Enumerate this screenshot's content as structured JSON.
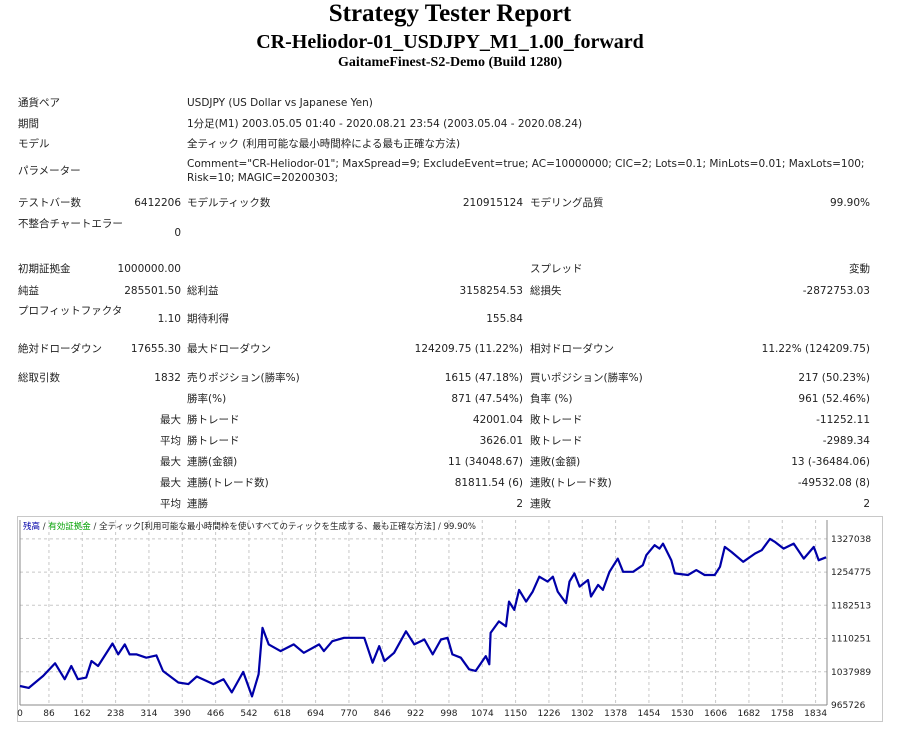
{
  "header": {
    "title": "Strategy Tester Report",
    "subtitle": "CR-Heliodor-01_USDJPY_M1_1.00_forward",
    "server": "GaitameFinest-S2-Demo (Build 1280)"
  },
  "info": {
    "symbol_label": "通貨ペア",
    "symbol": "USDJPY (US Dollar vs Japanese Yen)",
    "period_label": "期間",
    "period": "1分足(M1) 2003.05.05 01:40 - 2020.08.21 23:54 (2003.05.04 - 2020.08.24)",
    "model_label": "モデル",
    "model": "全ティック (利用可能な最小時間枠による最も正確な方法)",
    "params_label": "パラメーター",
    "params": "Comment=\"CR-Heliodor-01\"; MaxSpread=9; ExcludeEvent=true; AC=10000000; CIC=2; Lots=0.1; MinLots=0.01; MaxLots=100; Risk=10; MAGIC=20200303;",
    "bars_label": "テストバー数",
    "bars": "6412206",
    "ticks_label": "モデルティック数",
    "ticks": "210915124",
    "quality_label": "モデリング品質",
    "quality": "99.90%",
    "errors_label": "不整合チャートエラー",
    "errors": "0"
  },
  "stats": {
    "deposit_label": "初期証拠金",
    "deposit": "1000000.00",
    "spread_label": "スプレッド",
    "spread": "変動",
    "net_label": "純益",
    "net": "285501.50",
    "gross_profit_label": "総利益",
    "gross_profit": "3158254.53",
    "gross_loss_label": "総損失",
    "gross_loss": "-2872753.03",
    "pf_label": "プロフィットファクタ",
    "pf": "1.10",
    "payoff_label": "期待利得",
    "payoff": "155.84",
    "abs_dd_label": "絶対ドローダウン",
    "abs_dd": "17655.30",
    "max_dd_label": "最大ドローダウン",
    "max_dd": "124209.75 (11.22%)",
    "rel_dd_label": "相対ドローダウン",
    "rel_dd": "11.22% (124209.75)",
    "trades_label": "総取引数",
    "trades": "1832",
    "short_label": "売りポジション(勝率%)",
    "short": "1615 (47.18%)",
    "long_label": "買いポジション(勝率%)",
    "long": "217 (50.23%)",
    "win_label": "勝率(%)",
    "win": "871 (47.54%)",
    "loss_label": "負率 (%)",
    "loss": "961 (52.46%)",
    "max": "最大",
    "avg": "平均",
    "lg_win_label": "勝トレード",
    "lg_win": "42001.04",
    "lg_loss_label": "敗トレード",
    "lg_loss": "-11252.11",
    "av_win_label": "勝トレード",
    "av_win": "3626.01",
    "av_loss_label": "敗トレード",
    "av_loss": "-2989.34",
    "mcw_label": "連勝(金額)",
    "mcw": "11 (34048.67)",
    "mcl_label": "連敗(金額)",
    "mcl": "13 (-36484.06)",
    "mcp_label": "連勝(トレード数)",
    "mcp": "81811.54 (6)",
    "mcpl_label": "連敗(トレード数)",
    "mcpl": "-49532.08 (8)",
    "acw_label": "連勝",
    "acw": "2",
    "acl_label": "連敗",
    "acl": "2"
  },
  "chart_data": {
    "type": "line",
    "legend": {
      "balance": "残高",
      "equity": "有効証拠金",
      "model": "全ティック[利用可能な最小時間枠を使いすべてのティックを生成する、最も正確な方法]",
      "quality": "99.90%",
      "sep": " / "
    },
    "colors": {
      "balance": "#0000a8",
      "equity": "#00a000",
      "grid": "#c8c8c8"
    },
    "x_range": [
      20,
      1860
    ],
    "y_range": [
      965726,
      1368000
    ],
    "x_ticks": [
      0,
      86,
      162,
      238,
      314,
      390,
      466,
      542,
      618,
      694,
      770,
      846,
      922,
      998,
      1074,
      1150,
      1226,
      1302,
      1378,
      1454,
      1530,
      1606,
      1682,
      1758,
      1834
    ],
    "y_ticks": [
      1327038,
      1254775,
      1182513,
      1110251,
      1037989,
      965726
    ],
    "x": [
      20,
      40,
      73,
      100,
      122,
      137,
      152,
      171,
      183,
      198,
      231,
      244,
      259,
      270,
      286,
      308,
      331,
      346,
      381,
      404,
      423,
      461,
      484,
      503,
      529,
      549,
      564,
      573,
      587,
      614,
      644,
      667,
      702,
      713,
      732,
      759,
      805,
      824,
      839,
      851,
      873,
      900,
      919,
      942,
      961,
      980,
      995,
      1006,
      1025,
      1044,
      1059,
      1082,
      1090,
      1093,
      1112,
      1128,
      1135,
      1147,
      1158,
      1174,
      1189,
      1204,
      1223,
      1235,
      1246,
      1265,
      1273,
      1284,
      1296,
      1315,
      1322,
      1338,
      1349,
      1364,
      1383,
      1395,
      1418,
      1440,
      1448,
      1467,
      1478,
      1486,
      1505,
      1513,
      1543,
      1562,
      1581,
      1604,
      1616,
      1627,
      1642,
      1669,
      1696,
      1711,
      1730,
      1742,
      1761,
      1784,
      1807,
      1830,
      1841,
      1858
    ],
    "y": [
      1007000,
      1003000,
      1028900,
      1056300,
      1021800,
      1050500,
      1021800,
      1025400,
      1061300,
      1050500,
      1099500,
      1075700,
      1097400,
      1075700,
      1075700,
      1068600,
      1073600,
      1039700,
      1014700,
      1011100,
      1027600,
      1011100,
      1021800,
      993100,
      1037600,
      984500,
      1032600,
      1133300,
      1097400,
      1082900,
      1097400,
      1079300,
      1097400,
      1082900,
      1104400,
      1111800,
      1111800,
      1057700,
      1093800,
      1061300,
      1079300,
      1126000,
      1097400,
      1108100,
      1075700,
      1108100,
      1111800,
      1075700,
      1068600,
      1043400,
      1039900,
      1072100,
      1054200,
      1122500,
      1147500,
      1136800,
      1190500,
      1172600,
      1215900,
      1190500,
      1212300,
      1244800,
      1234000,
      1244800,
      1212300,
      1187300,
      1234000,
      1251900,
      1223200,
      1237600,
      1201700,
      1226800,
      1215900,
      1255400,
      1284100,
      1255400,
      1255400,
      1269700,
      1291500,
      1313100,
      1305900,
      1316700,
      1280600,
      1251900,
      1248300,
      1259100,
      1248300,
      1248300,
      1266200,
      1309500,
      1298700,
      1277100,
      1295100,
      1302300,
      1327000,
      1320000,
      1305900,
      1316700,
      1284100,
      1309500,
      1280600,
      1287000
    ]
  }
}
